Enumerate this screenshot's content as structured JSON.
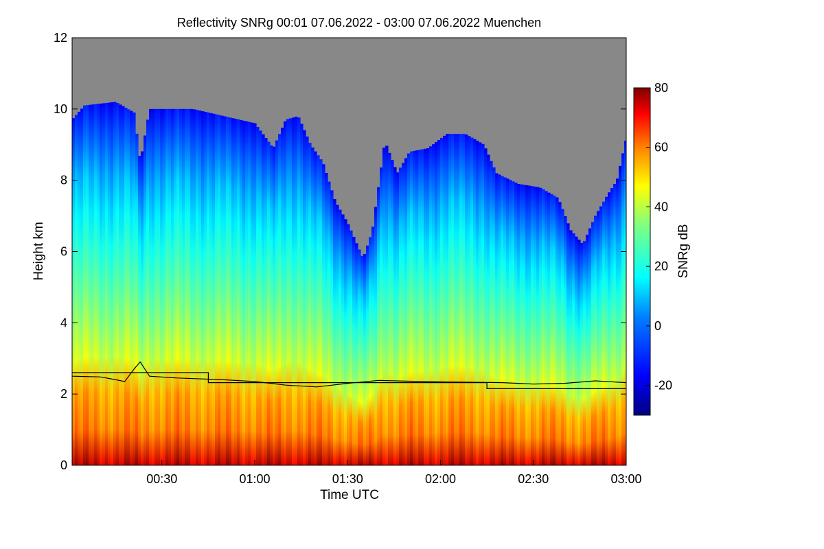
{
  "chart_data": {
    "type": "heatmap",
    "title": "Reflectivity SNRg   00:01 07.06.2022 - 03:00 07.06.2022 Muenchen",
    "xlabel": "Time UTC",
    "ylabel": "Height km",
    "x_ticks": [
      "00:30",
      "01:00",
      "01:30",
      "02:00",
      "02:30",
      "03:00"
    ],
    "x_tick_minutes": [
      30,
      60,
      90,
      120,
      150,
      180
    ],
    "xlim_minutes": [
      1,
      180
    ],
    "y_ticks": [
      "0",
      "2",
      "4",
      "6",
      "8",
      "10",
      "12"
    ],
    "ylim": [
      0,
      12
    ],
    "colorbar": {
      "label": "SNRg dB",
      "range": [
        -30,
        80
      ],
      "ticks": [
        "80",
        "60",
        "40",
        "20",
        "0",
        "-20"
      ],
      "tick_values": [
        80,
        60,
        40,
        20,
        0,
        -20
      ],
      "no_signal_color": "#888888"
    },
    "echo_top_km": [
      {
        "t": 1,
        "h": 9.7
      },
      {
        "t": 5,
        "h": 10.1
      },
      {
        "t": 15,
        "h": 10.2
      },
      {
        "t": 21,
        "h": 9.9
      },
      {
        "t": 23,
        "h": 8.5
      },
      {
        "t": 26,
        "h": 10.0
      },
      {
        "t": 40,
        "h": 10.0
      },
      {
        "t": 50,
        "h": 9.8
      },
      {
        "t": 60,
        "h": 9.6
      },
      {
        "t": 66,
        "h": 8.9
      },
      {
        "t": 70,
        "h": 9.7
      },
      {
        "t": 74,
        "h": 9.8
      },
      {
        "t": 78,
        "h": 9.0
      },
      {
        "t": 82,
        "h": 8.5
      },
      {
        "t": 86,
        "h": 7.4
      },
      {
        "t": 90,
        "h": 6.8
      },
      {
        "t": 95,
        "h": 5.8
      },
      {
        "t": 98,
        "h": 6.6
      },
      {
        "t": 102,
        "h": 9.1
      },
      {
        "t": 106,
        "h": 8.2
      },
      {
        "t": 110,
        "h": 8.8
      },
      {
        "t": 116,
        "h": 8.9
      },
      {
        "t": 122,
        "h": 9.3
      },
      {
        "t": 128,
        "h": 9.3
      },
      {
        "t": 134,
        "h": 9.0
      },
      {
        "t": 138,
        "h": 8.2
      },
      {
        "t": 145,
        "h": 7.9
      },
      {
        "t": 152,
        "h": 7.8
      },
      {
        "t": 158,
        "h": 7.5
      },
      {
        "t": 162,
        "h": 6.6
      },
      {
        "t": 166,
        "h": 6.2
      },
      {
        "t": 170,
        "h": 7.0
      },
      {
        "t": 174,
        "h": 7.6
      },
      {
        "t": 177,
        "h": 8.0
      },
      {
        "t": 180,
        "h": 9.2
      }
    ],
    "melting_layer_km": [
      {
        "t": 1,
        "h": 2.5
      },
      {
        "t": 10,
        "h": 2.48
      },
      {
        "t": 14,
        "h": 2.42
      },
      {
        "t": 18,
        "h": 2.35
      },
      {
        "t": 21,
        "h": 2.7
      },
      {
        "t": 23,
        "h": 2.9
      },
      {
        "t": 26,
        "h": 2.5
      },
      {
        "t": 35,
        "h": 2.45
      },
      {
        "t": 50,
        "h": 2.4
      },
      {
        "t": 60,
        "h": 2.35
      },
      {
        "t": 70,
        "h": 2.25
      },
      {
        "t": 80,
        "h": 2.2
      },
      {
        "t": 90,
        "h": 2.3
      },
      {
        "t": 100,
        "h": 2.38
      },
      {
        "t": 110,
        "h": 2.36
      },
      {
        "t": 120,
        "h": 2.34
      },
      {
        "t": 130,
        "h": 2.33
      },
      {
        "t": 140,
        "h": 2.32
      },
      {
        "t": 150,
        "h": 2.28
      },
      {
        "t": 160,
        "h": 2.3
      },
      {
        "t": 170,
        "h": 2.37
      },
      {
        "t": 180,
        "h": 2.32
      }
    ],
    "freezing_level_km": [
      {
        "t": 1,
        "h": 2.6
      },
      {
        "t": 45,
        "h": 2.6
      },
      {
        "t": 45,
        "h": 2.32
      },
      {
        "t": 135,
        "h": 2.32
      },
      {
        "t": 135,
        "h": 2.15
      },
      {
        "t": 180,
        "h": 2.15
      }
    ],
    "snr_profile_anchors_db": [
      {
        "frac_of_top": 0.0,
        "db": 75
      },
      {
        "frac_of_top": 0.05,
        "db": 62
      },
      {
        "frac_of_top": 0.22,
        "db": 55
      },
      {
        "frac_of_top": 0.25,
        "db": 45
      },
      {
        "frac_of_top": 0.45,
        "db": 32
      },
      {
        "frac_of_top": 0.65,
        "db": 18
      },
      {
        "frac_of_top": 0.85,
        "db": 5
      },
      {
        "frac_of_top": 1.0,
        "db": -15
      }
    ]
  }
}
